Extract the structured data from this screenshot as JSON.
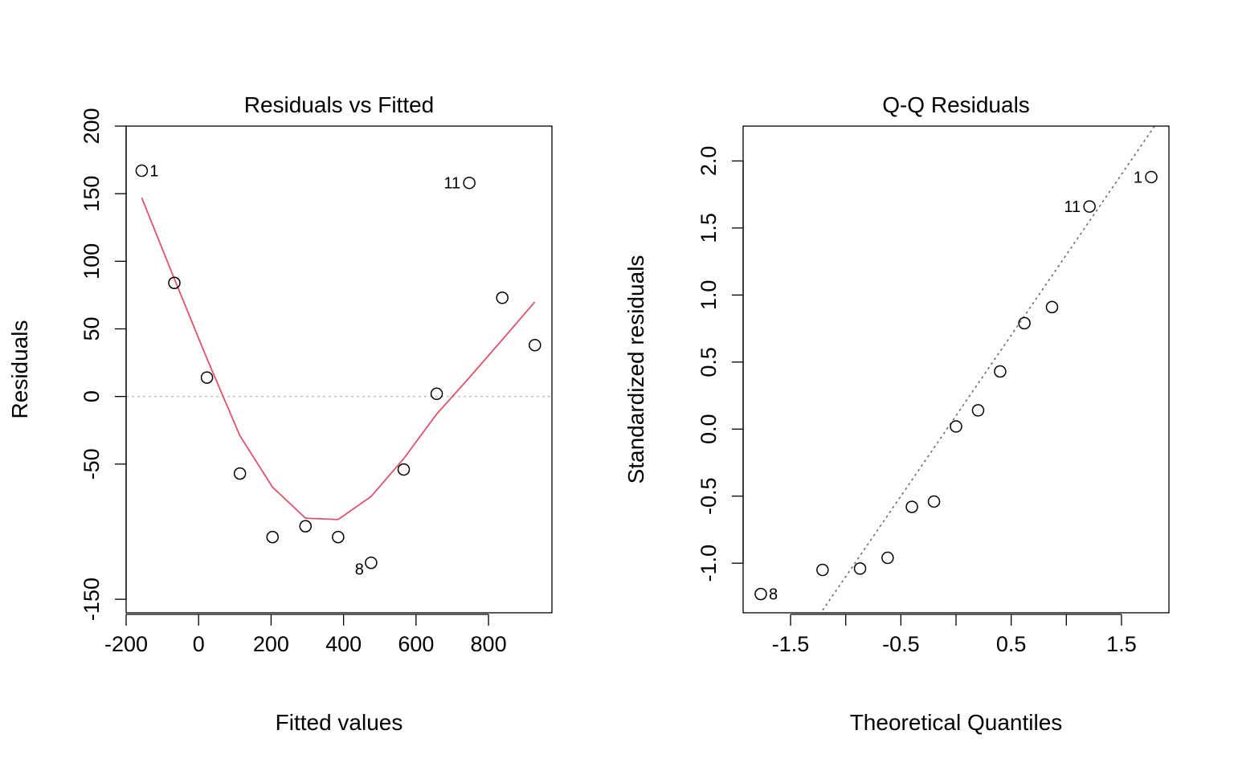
{
  "chart_data": [
    {
      "type": "scatter",
      "title": "Residuals vs Fitted",
      "xlabel": "Fitted values",
      "ylabel": "Residuals",
      "xlim": [
        -200,
        975
      ],
      "ylim": [
        -160,
        200
      ],
      "x_ticks": [
        -200,
        0,
        200,
        400,
        600,
        800
      ],
      "x_tick_labels": [
        "-200",
        "0",
        "200",
        "400",
        "600",
        "800"
      ],
      "y_ticks": [
        -150,
        -50,
        0,
        50,
        100,
        150,
        200
      ],
      "y_tick_labels": [
        "-150",
        "-50",
        "0",
        "50",
        "100",
        "150",
        "200"
      ],
      "points": [
        {
          "x": -157,
          "y": 167,
          "label": "1"
        },
        {
          "x": -67,
          "y": 84,
          "label": ""
        },
        {
          "x": 23,
          "y": 14,
          "label": ""
        },
        {
          "x": 114,
          "y": -57,
          "label": ""
        },
        {
          "x": 204,
          "y": -104,
          "label": ""
        },
        {
          "x": 295,
          "y": -96,
          "label": ""
        },
        {
          "x": 385,
          "y": -104,
          "label": ""
        },
        {
          "x": 476,
          "y": -123,
          "label": "8"
        },
        {
          "x": 566,
          "y": -54,
          "label": ""
        },
        {
          "x": 657,
          "y": 2,
          "label": ""
        },
        {
          "x": 747,
          "y": 158,
          "label": "11"
        },
        {
          "x": 838,
          "y": 73,
          "label": ""
        },
        {
          "x": 928,
          "y": 38,
          "label": ""
        }
      ],
      "smoother": {
        "color": "#DF536B",
        "x": [
          -157,
          -67,
          23,
          114,
          204,
          295,
          385,
          476,
          566,
          657,
          747,
          838,
          928
        ],
        "y": [
          147,
          87,
          28,
          -29,
          -67,
          -90,
          -91,
          -74,
          -46,
          -13,
          14,
          42,
          70
        ]
      },
      "reference_line": {
        "y": 0,
        "color": "#BEBEBE",
        "style": "dotted"
      }
    },
    {
      "type": "scatter",
      "title": "Q-Q Residuals",
      "xlabel": "Theoretical Quantiles",
      "ylabel": "Standardized residuals",
      "xlim": [
        -1.93,
        1.93
      ],
      "ylim": [
        -1.37,
        2.26
      ],
      "x_ticks": [
        -1.5,
        -0.5,
        0.5,
        1.5
      ],
      "x_tick_labels": [
        "-1.5",
        "-0.5",
        "0.5",
        "1.5"
      ],
      "x_minor_ticks": [
        -1.0,
        0.0,
        1.0
      ],
      "y_ticks": [
        -1.0,
        -0.5,
        0.0,
        0.5,
        1.0,
        1.5,
        2.0
      ],
      "y_tick_labels": [
        "-1.0",
        "-0.5",
        "0.0",
        "0.5",
        "1.0",
        "1.5",
        "2.0"
      ],
      "points": [
        {
          "x": -1.77,
          "y": -1.23,
          "label": "8"
        },
        {
          "x": -1.21,
          "y": -1.05,
          "label": ""
        },
        {
          "x": -0.87,
          "y": -1.04,
          "label": ""
        },
        {
          "x": -0.62,
          "y": -0.96,
          "label": ""
        },
        {
          "x": -0.4,
          "y": -0.58,
          "label": ""
        },
        {
          "x": -0.2,
          "y": -0.54,
          "label": ""
        },
        {
          "x": 0.0,
          "y": 0.02,
          "label": ""
        },
        {
          "x": 0.2,
          "y": 0.14,
          "label": ""
        },
        {
          "x": 0.4,
          "y": 0.43,
          "label": ""
        },
        {
          "x": 0.62,
          "y": 0.79,
          "label": ""
        },
        {
          "x": 0.87,
          "y": 0.91,
          "label": ""
        },
        {
          "x": 1.21,
          "y": 1.66,
          "label": "11"
        },
        {
          "x": 1.77,
          "y": 1.88,
          "label": "1"
        }
      ],
      "reference_line": {
        "intercept": 0.1,
        "slope": 1.2,
        "color": "#6E6E6E",
        "style": "dotted"
      }
    }
  ]
}
